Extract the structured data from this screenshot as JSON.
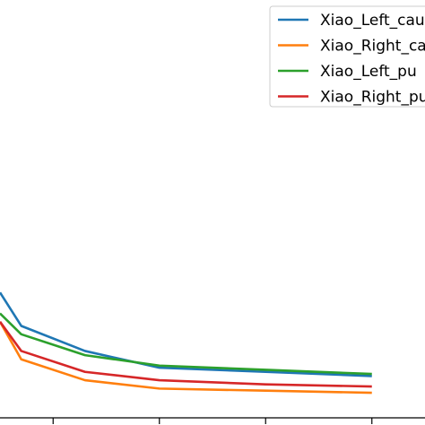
{
  "chart_data": {
    "type": "line",
    "x": [
      0.0,
      0.2,
      0.8,
      1.5,
      2.5,
      3.5
    ],
    "xlim": [
      0.0,
      4.0
    ],
    "ylim": [
      0.0,
      1.0
    ],
    "grid": false,
    "legend_position": "top-right",
    "series": [
      {
        "name": "Xiao_Left_cau",
        "color": "#1f77b4",
        "values": [
          0.3,
          0.22,
          0.16,
          0.12,
          0.11,
          0.1
        ]
      },
      {
        "name": "Xiao_Right_ca",
        "color": "#ff7f0e",
        "values": [
          0.23,
          0.14,
          0.09,
          0.07,
          0.065,
          0.06
        ]
      },
      {
        "name": "Xiao_Left_pu",
        "color": "#2ca02c",
        "values": [
          0.25,
          0.2,
          0.15,
          0.125,
          0.115,
          0.105
        ]
      },
      {
        "name": "Xiao_Right_pu",
        "color": "#d62728",
        "values": [
          0.23,
          0.16,
          0.11,
          0.09,
          0.08,
          0.075
        ]
      }
    ]
  }
}
